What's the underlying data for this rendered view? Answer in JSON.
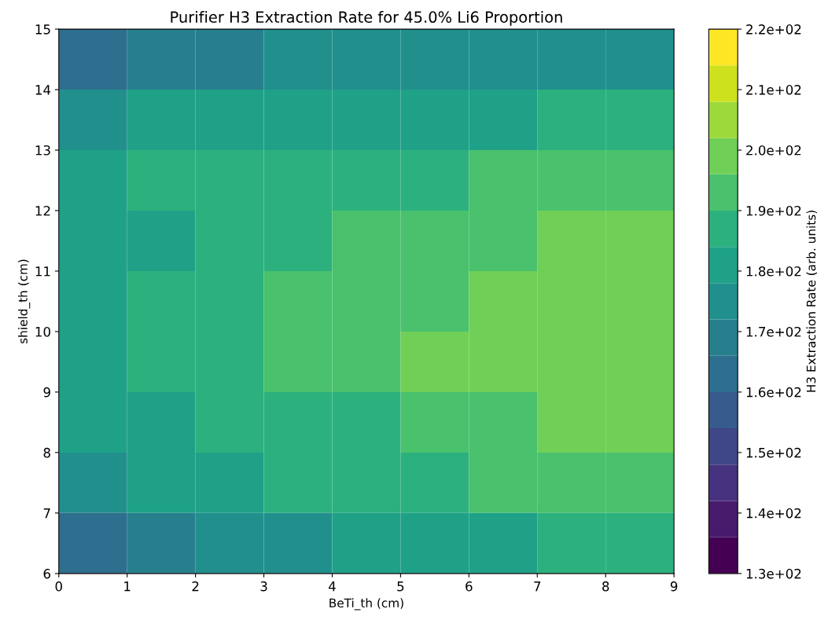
{
  "chart_data": {
    "type": "heatmap",
    "title": "Purifier H3 Extraction Rate for 45.0% Li6 Proportion",
    "xlabel": "BeTi_th (cm)",
    "ylabel": "shield_th (cm)",
    "clabel": "H3 Extraction Rate (arb. units)",
    "x": [
      0.5,
      1.5,
      2.5,
      3.5,
      4.5,
      5.5,
      6.5,
      7.5,
      8.5
    ],
    "y": [
      14.5,
      13.5,
      12.5,
      11.5,
      10.5,
      9.5,
      8.5,
      7.5,
      6.5
    ],
    "cells": [
      [
        163,
        169,
        169,
        175,
        175,
        175,
        175,
        175,
        175
      ],
      [
        175,
        181,
        181,
        181,
        181,
        181,
        181,
        187,
        187
      ],
      [
        181,
        187,
        187,
        187,
        187,
        187,
        193,
        193,
        193
      ],
      [
        181,
        181,
        187,
        187,
        193,
        193,
        193,
        199,
        199
      ],
      [
        181,
        187,
        187,
        193,
        193,
        193,
        199,
        199,
        199
      ],
      [
        181,
        187,
        187,
        193,
        193,
        199,
        199,
        199,
        199
      ],
      [
        181,
        181,
        187,
        187,
        187,
        193,
        193,
        199,
        199
      ],
      [
        175,
        181,
        181,
        187,
        187,
        187,
        193,
        193,
        193
      ],
      [
        163,
        169,
        175,
        175,
        181,
        181,
        181,
        187,
        187
      ]
    ],
    "xlim": [
      0,
      9
    ],
    "ylim": [
      6,
      15
    ],
    "xticks": [
      0,
      1,
      2,
      3,
      4,
      5,
      6,
      7,
      8,
      9
    ],
    "yticks": [
      6,
      7,
      8,
      9,
      10,
      11,
      12,
      13,
      14,
      15
    ],
    "clim": [
      130,
      220
    ],
    "cticks": [
      {
        "value": 130,
        "label": "1.3e+02"
      },
      {
        "value": 140,
        "label": "1.4e+02"
      },
      {
        "value": 150,
        "label": "1.5e+02"
      },
      {
        "value": 160,
        "label": "1.6e+02"
      },
      {
        "value": 170,
        "label": "1.7e+02"
      },
      {
        "value": 180,
        "label": "1.8e+02"
      },
      {
        "value": 190,
        "label": "1.9e+02"
      },
      {
        "value": 200,
        "label": "2.0e+02"
      },
      {
        "value": 210,
        "label": "2.1e+02"
      },
      {
        "value": 220,
        "label": "2.2e+02"
      }
    ]
  }
}
